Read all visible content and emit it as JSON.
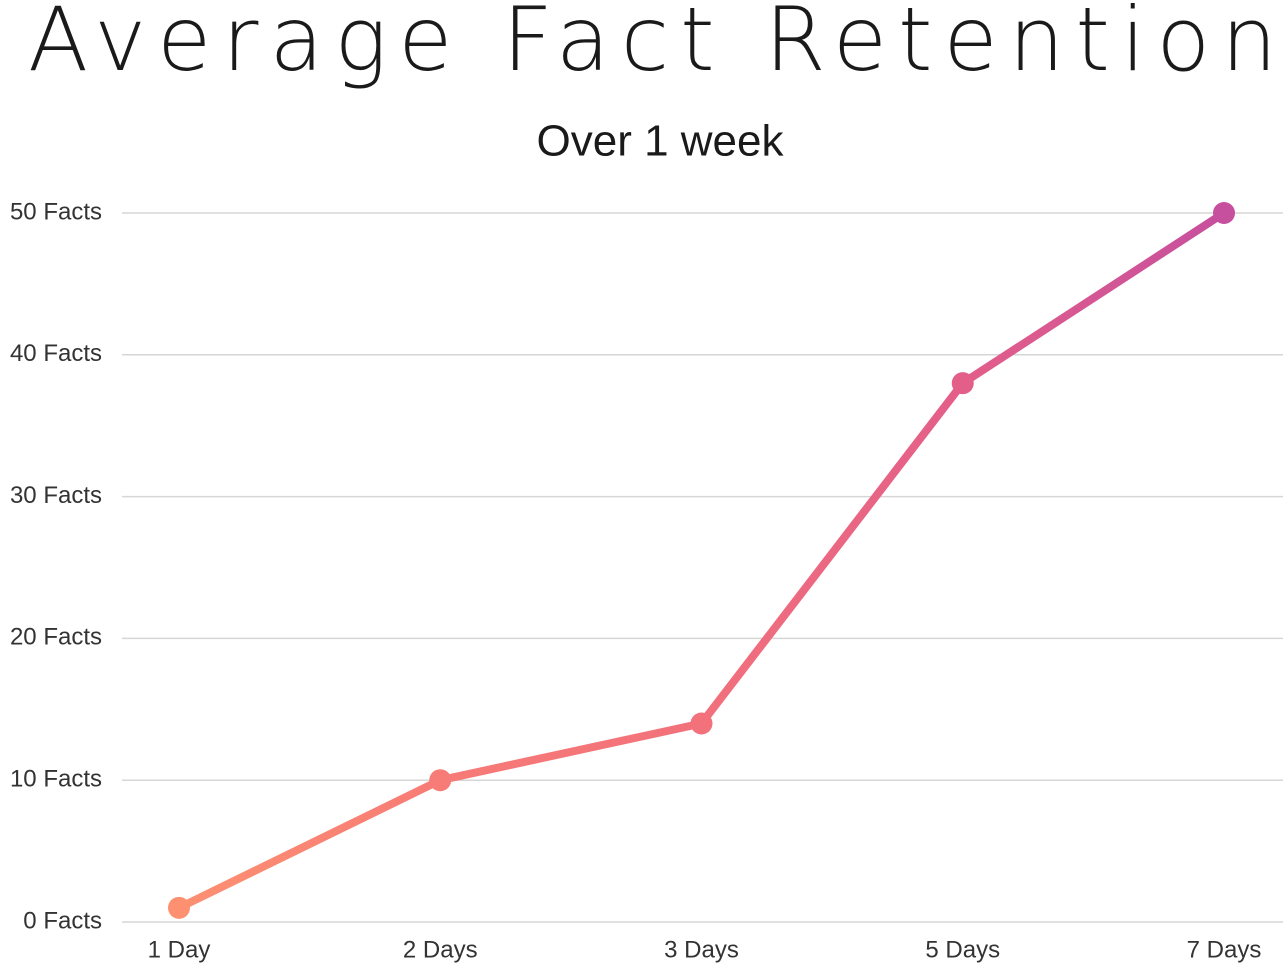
{
  "chart_data": {
    "type": "line",
    "title": "Average Fact Retention",
    "subtitle": "Over 1 week",
    "categories": [
      "1 Day",
      "2 Days",
      "3 Days",
      "5 Days",
      "7 Days"
    ],
    "values": [
      1,
      10,
      14,
      38,
      50
    ],
    "point_colors": [
      "#fd9071",
      "#f77b76",
      "#f2717b",
      "#e35e89",
      "#c64f9e"
    ],
    "ylim": [
      0,
      50
    ],
    "yticks": [
      {
        "value": 0,
        "label": "0 Facts"
      },
      {
        "value": 10,
        "label": "10 Facts"
      },
      {
        "value": 20,
        "label": "20 Facts"
      },
      {
        "value": 30,
        "label": "30 Facts"
      },
      {
        "value": 40,
        "label": "40 Facts"
      },
      {
        "value": 50,
        "label": "50 Facts"
      }
    ],
    "grid": true
  }
}
